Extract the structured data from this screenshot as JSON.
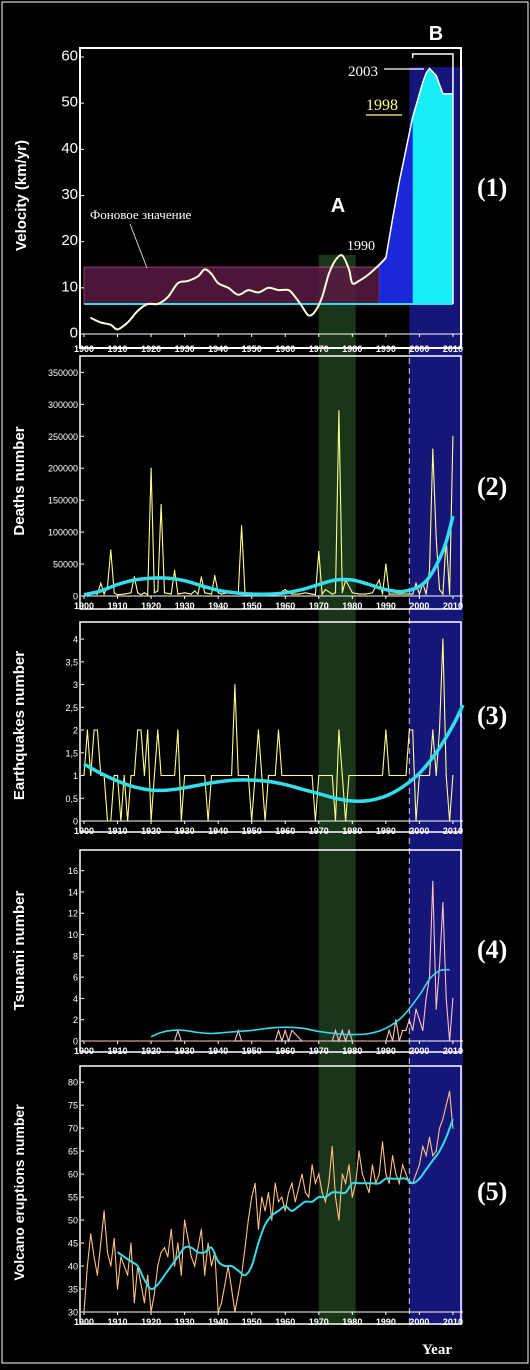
{
  "colors": {
    "background": "#000000",
    "frame": "#ffffff",
    "raw_series": "#ffff88",
    "trend": "#33ddee",
    "zone_a": "#2c5a2c",
    "zone_b": "#1c1c96",
    "background_band": "#5a1a44",
    "velocity_fill_blue": "#1a28d8",
    "velocity_fill_cyan": "#18ecf6",
    "tsunami_raw": "#ffc0c0",
    "volcano_raw": "#ffc080"
  },
  "zones": {
    "a_label": "A",
    "a_years": [
      1970,
      1981
    ],
    "b_label": "B",
    "b_years": [
      1997,
      2013
    ]
  },
  "x_label": "Year",
  "chart_data": [
    {
      "id": "velocity",
      "panel_label": "(1)",
      "type": "line",
      "ylabel": "Velocity (km/yr)",
      "xlim": [
        1900,
        2013
      ],
      "ylim": [
        0,
        60
      ],
      "yticks": [
        "0",
        "10",
        "20",
        "30",
        "40",
        "50",
        "60"
      ],
      "xticks": [
        "1900",
        "1910",
        "1920",
        "1930",
        "1940",
        "1950",
        "1960",
        "1970",
        "1980",
        "1990",
        "2000",
        "2010"
      ],
      "x": [
        1902,
        1905,
        1908,
        1910,
        1913,
        1916,
        1919,
        1922,
        1925,
        1928,
        1931,
        1934,
        1936,
        1938,
        1940,
        1943,
        1946,
        1949,
        1952,
        1955,
        1958,
        1961,
        1963,
        1965,
        1967,
        1969,
        1971,
        1973,
        1975,
        1977,
        1979,
        1980,
        1982,
        1985,
        1988,
        1990
      ],
      "y": [
        3.5,
        2.5,
        2,
        1,
        2.5,
        5,
        6.5,
        6.5,
        8,
        11,
        11.5,
        12.5,
        14,
        13,
        11,
        10,
        8.5,
        9.5,
        9,
        10,
        9.5,
        9.5,
        8,
        6,
        4,
        5,
        8,
        13,
        16,
        17,
        14,
        11,
        11.5,
        13,
        15,
        16.5
      ],
      "rise_x": [
        1990,
        1992,
        1994,
        1996,
        1998,
        2000,
        2001,
        2002,
        2003,
        2005,
        2007,
        2010
      ],
      "rise_y": [
        16.5,
        25,
        33,
        40,
        47,
        52,
        54.5,
        56.5,
        57.5,
        56,
        52,
        52
      ],
      "background_band": [
        6.5,
        14.5
      ],
      "background_line": 6.5,
      "annotations": {
        "background_label": "Фоновое значение",
        "y1990": "1990",
        "y1998": "1998",
        "y2003": "2003"
      }
    },
    {
      "id": "deaths",
      "panel_label": "(2)",
      "type": "line",
      "ylabel": "Deaths  number",
      "xlim": [
        1900,
        2013
      ],
      "ylim": [
        0,
        360000
      ],
      "yticks": [
        "0",
        "50000",
        "100000",
        "150000",
        "200000",
        "250000",
        "300000",
        "350000"
      ],
      "xticks": [
        "1900",
        "1910",
        "1920",
        "1930",
        "1940",
        "1950",
        "1960",
        "1970",
        "1980",
        "1990",
        "2000",
        "2010"
      ],
      "x": [
        1900,
        1902,
        1904,
        1905,
        1906,
        1907,
        1908,
        1909,
        1910,
        1912,
        1914,
        1915,
        1916,
        1917,
        1918,
        1919,
        1920,
        1921,
        1922,
        1923,
        1924,
        1926,
        1927,
        1928,
        1930,
        1932,
        1933,
        1934,
        1935,
        1936,
        1938,
        1939,
        1940,
        1941,
        1943,
        1945,
        1946,
        1947,
        1948,
        1949,
        1950,
        1952,
        1954,
        1956,
        1958,
        1960,
        1962,
        1964,
        1966,
        1968,
        1969,
        1970,
        1971,
        1972,
        1974,
        1975,
        1976,
        1977,
        1978,
        1980,
        1982,
        1984,
        1986,
        1988,
        1989,
        1990,
        1991,
        1992,
        1994,
        1996,
        1998,
        1999,
        2000,
        2001,
        2002,
        2003,
        2004,
        2005,
        2006,
        2007,
        2008,
        2009,
        2010
      ],
      "y": [
        0,
        5000,
        3000,
        20000,
        3000,
        15000,
        72000,
        5000,
        2000,
        3000,
        5000,
        30000,
        5000,
        2000,
        5000,
        2000,
        200000,
        5000,
        8000,
        143000,
        5000,
        3000,
        40000,
        3000,
        5000,
        3000,
        8000,
        3000,
        30000,
        5000,
        3000,
        32000,
        5000,
        3000,
        5000,
        5000,
        5000,
        110000,
        5000,
        3000,
        5000,
        3000,
        3000,
        3000,
        3000,
        10000,
        3000,
        3000,
        5000,
        3000,
        2000,
        70000,
        3000,
        10000,
        3000,
        5000,
        290000,
        5000,
        25000,
        5000,
        3000,
        3000,
        5000,
        25000,
        3000,
        50000,
        3000,
        3000,
        3000,
        3000,
        3000,
        20000,
        3000,
        20000,
        3000,
        40000,
        230000,
        90000,
        10000,
        3000,
        90000,
        3000,
        250000
      ],
      "trend_x": [
        1900,
        1905,
        1910,
        1915,
        1920,
        1925,
        1930,
        1935,
        1940,
        1945,
        1950,
        1955,
        1960,
        1965,
        1970,
        1975,
        1980,
        1985,
        1990,
        1995,
        2000,
        2003,
        2006,
        2008,
        2010
      ],
      "trend_y": [
        2000,
        8000,
        18000,
        25000,
        28000,
        28000,
        24000,
        16000,
        9000,
        5000,
        3000,
        3000,
        5000,
        10000,
        18000,
        25000,
        25000,
        18000,
        10000,
        7000,
        15000,
        30000,
        58000,
        85000,
        125000
      ]
    },
    {
      "id": "earthquakes",
      "panel_label": "(3)",
      "type": "line",
      "ylabel": "Earthquakes number",
      "xlim": [
        1900,
        2013
      ],
      "ylim": [
        0,
        4.2
      ],
      "yticks": [
        "0",
        "0,5",
        "1",
        "1,5",
        "2",
        "2,5",
        "3",
        "3,5",
        "4"
      ],
      "xticks": [
        "1900",
        "1910",
        "1920",
        "1930",
        "1940",
        "1950",
        "1960",
        "1970",
        "1980",
        "1990",
        "2000",
        "2010"
      ],
      "x": [
        1900,
        1901,
        1902,
        1903,
        1904,
        1905,
        1906,
        1907,
        1908,
        1909,
        1910,
        1911,
        1912,
        1913,
        1914,
        1915,
        1916,
        1917,
        1918,
        1919,
        1920,
        1921,
        1922,
        1923,
        1924,
        1925,
        1926,
        1927,
        1928,
        1929,
        1930,
        1931,
        1932,
        1933,
        1934,
        1935,
        1936,
        1937,
        1938,
        1939,
        1940,
        1941,
        1942,
        1943,
        1944,
        1945,
        1946,
        1947,
        1948,
        1949,
        1950,
        1951,
        1952,
        1953,
        1954,
        1955,
        1956,
        1957,
        1958,
        1959,
        1960,
        1961,
        1962,
        1963,
        1964,
        1965,
        1966,
        1967,
        1968,
        1969,
        1970,
        1971,
        1972,
        1973,
        1974,
        1975,
        1976,
        1977,
        1978,
        1979,
        1980,
        1981,
        1982,
        1983,
        1984,
        1985,
        1986,
        1987,
        1988,
        1989,
        1990,
        1991,
        1992,
        1993,
        1994,
        1995,
        1996,
        1997,
        1998,
        1999,
        2000,
        2001,
        2002,
        2003,
        2004,
        2005,
        2006,
        2007,
        2008,
        2009,
        2010
      ],
      "y": [
        1,
        2,
        1,
        2,
        2,
        1,
        1,
        0,
        0,
        1,
        1,
        0,
        1,
        0,
        1,
        1,
        2,
        2,
        1,
        2,
        0,
        1,
        2,
        1,
        1,
        1,
        1,
        1,
        2,
        0,
        1,
        1,
        1,
        1,
        1,
        1,
        1,
        0,
        1,
        1,
        1,
        1,
        1,
        1,
        1,
        3,
        1,
        1,
        1,
        1,
        0,
        1,
        2,
        1,
        0,
        1,
        1,
        1,
        2,
        1,
        1,
        1,
        1,
        1,
        1,
        1,
        1,
        1,
        1,
        0,
        1,
        1,
        1,
        1,
        1,
        0,
        2,
        1,
        0,
        1,
        1,
        1,
        1,
        1,
        1,
        1,
        1,
        1,
        1,
        1,
        2,
        1,
        1,
        1,
        1,
        1,
        1,
        2,
        2,
        0,
        1,
        1,
        1,
        1,
        2,
        1,
        2,
        4,
        1,
        0,
        1
      ],
      "trend_x": [
        1900,
        1905,
        1910,
        1915,
        1920,
        1925,
        1930,
        1935,
        1940,
        1945,
        1950,
        1955,
        1960,
        1965,
        1970,
        1975,
        1980,
        1985,
        1990,
        1995,
        2000,
        2005,
        2010,
        2013
      ],
      "trend_y": [
        1.25,
        1.05,
        0.88,
        0.75,
        0.68,
        0.68,
        0.73,
        0.8,
        0.86,
        0.9,
        0.9,
        0.87,
        0.8,
        0.7,
        0.6,
        0.5,
        0.44,
        0.45,
        0.55,
        0.75,
        1.05,
        1.5,
        2.1,
        2.55
      ]
    },
    {
      "id": "tsunami",
      "panel_label": "(4)",
      "type": "line",
      "ylabel": "Tsunami number",
      "xlim": [
        1900,
        2013
      ],
      "ylim": [
        0,
        17
      ],
      "yticks": [
        "0",
        "2",
        "4",
        "6",
        "8",
        "10",
        "12",
        "14",
        "16"
      ],
      "xticks": [
        "1900",
        "1910",
        "1920",
        "1930",
        "1940",
        "1950",
        "1960",
        "1970",
        "1980",
        "1990",
        "2000",
        "2010"
      ],
      "x": [
        1900,
        1905,
        1910,
        1915,
        1920,
        1925,
        1927,
        1928,
        1929,
        1930,
        1935,
        1945,
        1946,
        1947,
        1950,
        1955,
        1957,
        1958,
        1959,
        1960,
        1961,
        1962,
        1965,
        1970,
        1972,
        1974,
        1975,
        1976,
        1977,
        1978,
        1979,
        1980,
        1983,
        1985,
        1990,
        1991,
        1992,
        1993,
        1994,
        1995,
        1996,
        1997,
        1998,
        1999,
        2000,
        2001,
        2002,
        2003,
        2004,
        2005,
        2006,
        2007,
        2008,
        2009,
        2010
      ],
      "y": [
        0,
        0,
        0,
        0,
        0,
        0,
        0,
        1,
        0,
        0,
        0,
        0,
        1,
        0,
        0,
        0,
        0,
        1,
        0,
        1,
        0,
        1,
        0,
        0,
        0,
        0,
        1,
        0,
        1,
        0,
        1,
        0,
        0,
        0,
        0,
        1,
        0,
        2,
        0,
        1,
        1,
        2,
        1,
        3,
        2,
        1,
        4,
        6,
        15,
        3,
        7,
        13,
        4,
        0,
        4
      ],
      "trend_x": [
        1920,
        1923,
        1926,
        1930,
        1934,
        1938,
        1942,
        1946,
        1950,
        1955,
        1960,
        1965,
        1970,
        1975,
        1980,
        1985,
        1990,
        1995,
        2000,
        2003,
        2006,
        2009
      ],
      "trend_y": [
        0.4,
        0.8,
        1,
        1,
        0.8,
        0.7,
        0.8,
        0.9,
        1,
        1.2,
        1.3,
        1.2,
        0.9,
        0.7,
        0.6,
        0.7,
        1.2,
        2.3,
        4.3,
        5.8,
        6.6,
        6.7
      ]
    },
    {
      "id": "volcano",
      "panel_label": "(5)",
      "type": "line",
      "ylabel": "Volcano eruptions number",
      "xlim": [
        1900,
        2013
      ],
      "ylim": [
        30,
        82
      ],
      "yticks": [
        "30",
        "35",
        "40",
        "45",
        "50",
        "55",
        "60",
        "65",
        "70",
        "75",
        "80"
      ],
      "xticks": [
        "1900",
        "1910",
        "1920",
        "1930",
        "1940",
        "1950",
        "1960",
        "1970",
        "1980",
        "1990",
        "2000",
        "2010"
      ],
      "x": [
        1900,
        1901,
        1902,
        1903,
        1904,
        1905,
        1906,
        1907,
        1908,
        1909,
        1910,
        1911,
        1912,
        1913,
        1914,
        1915,
        1916,
        1917,
        1918,
        1919,
        1920,
        1921,
        1922,
        1923,
        1924,
        1925,
        1926,
        1927,
        1928,
        1929,
        1930,
        1931,
        1932,
        1933,
        1934,
        1935,
        1936,
        1937,
        1938,
        1939,
        1940,
        1941,
        1942,
        1943,
        1944,
        1945,
        1946,
        1947,
        1948,
        1949,
        1950,
        1951,
        1952,
        1953,
        1954,
        1955,
        1956,
        1957,
        1958,
        1959,
        1960,
        1961,
        1962,
        1963,
        1964,
        1965,
        1966,
        1967,
        1968,
        1969,
        1970,
        1971,
        1972,
        1973,
        1974,
        1975,
        1976,
        1977,
        1978,
        1979,
        1980,
        1981,
        1982,
        1983,
        1984,
        1985,
        1986,
        1987,
        1988,
        1989,
        1990,
        1991,
        1992,
        1993,
        1994,
        1995,
        1996,
        1997,
        1998,
        1999,
        2000,
        2001,
        2002,
        2003,
        2004,
        2005,
        2006,
        2007,
        2008,
        2009,
        2010
      ],
      "y": [
        30,
        40,
        47,
        42,
        38,
        45,
        52,
        43,
        40,
        46,
        35,
        42,
        40,
        38,
        45,
        32,
        40,
        36,
        32,
        38,
        30,
        34,
        40,
        43,
        44,
        42,
        48,
        40,
        45,
        38,
        50,
        46,
        42,
        40,
        44,
        48,
        38,
        45,
        40,
        43,
        30,
        32,
        36,
        40,
        35,
        30,
        34,
        38,
        44,
        50,
        55,
        58,
        48,
        55,
        52,
        56,
        50,
        58,
        54,
        55,
        52,
        56,
        58,
        54,
        57,
        60,
        56,
        55,
        62,
        58,
        60,
        56,
        54,
        58,
        66,
        55,
        50,
        60,
        58,
        62,
        55,
        58,
        65,
        60,
        58,
        56,
        62,
        58,
        60,
        67,
        60,
        58,
        64,
        60,
        58,
        62,
        60,
        58,
        58,
        60,
        62,
        66,
        64,
        68,
        64,
        65,
        70,
        72,
        75,
        78,
        70
      ],
      "trend_x": [
        1910,
        1912,
        1914,
        1916,
        1918,
        1920,
        1922,
        1924,
        1926,
        1928,
        1930,
        1932,
        1934,
        1936,
        1938,
        1940,
        1942,
        1944,
        1946,
        1948,
        1950,
        1952,
        1954,
        1956,
        1958,
        1960,
        1962,
        1964,
        1966,
        1968,
        1970,
        1972,
        1974,
        1976,
        1978,
        1980,
        1982,
        1984,
        1986,
        1988,
        1990,
        1992,
        1994,
        1996,
        1998,
        2000,
        2002,
        2004,
        2006,
        2008,
        2010
      ],
      "trend_y": [
        43,
        42,
        41,
        40,
        37,
        35,
        36,
        38,
        40,
        42,
        44,
        44,
        43,
        43,
        44,
        41,
        40,
        40,
        39,
        38,
        40,
        45,
        49,
        51,
        52,
        53,
        52,
        53,
        54,
        54,
        55,
        55,
        56,
        56,
        56,
        58,
        58,
        58,
        58,
        58,
        59,
        59,
        59,
        59,
        58,
        59,
        61,
        63,
        65,
        68,
        72
      ]
    }
  ]
}
